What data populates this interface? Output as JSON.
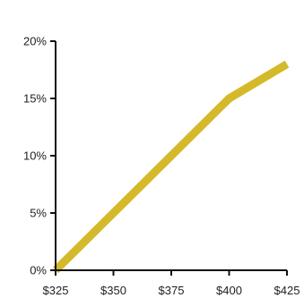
{
  "chart_data": {
    "type": "line",
    "title": "",
    "xlabel": "",
    "ylabel": "",
    "x": [
      325,
      350,
      375,
      400,
      425
    ],
    "xlim": [
      325,
      425
    ],
    "ylim": [
      0,
      20
    ],
    "x_tick_labels": [
      "$325",
      "$350",
      "$375",
      "$400",
      "$425"
    ],
    "y_tick_values": [
      0,
      5,
      10,
      15,
      20
    ],
    "y_tick_labels": [
      "0%",
      "5%",
      "10%",
      "15%",
      "20%"
    ],
    "grid": false,
    "legend": "none",
    "series": [
      {
        "color": "#d4b92a",
        "points": [
          {
            "x": 325,
            "y": 0
          },
          {
            "x": 350,
            "y": 5
          },
          {
            "x": 375,
            "y": 10
          },
          {
            "x": 400,
            "y": 15
          },
          {
            "x": 425,
            "y": 18
          }
        ]
      }
    ]
  }
}
